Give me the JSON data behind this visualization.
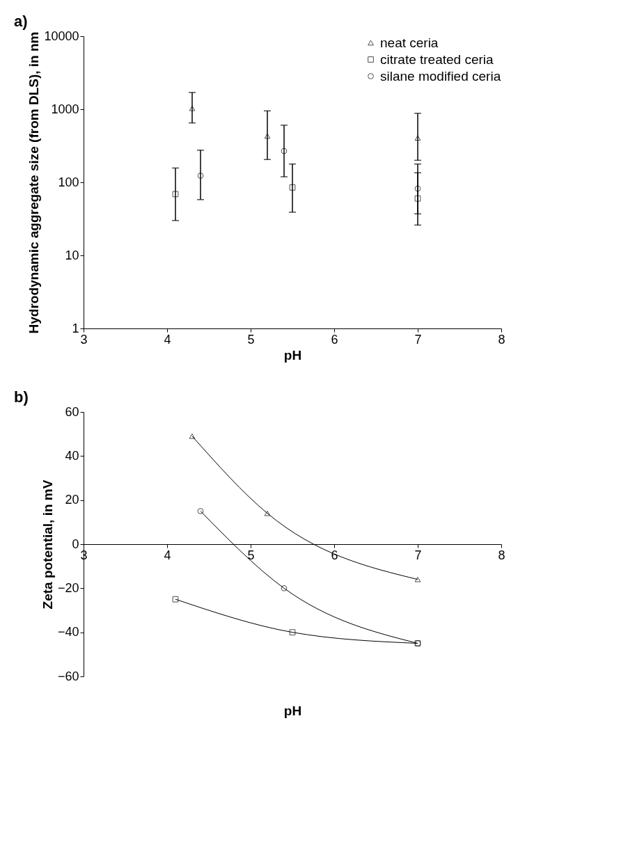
{
  "chart_data": [
    {
      "type": "scatter",
      "title": "a)",
      "xlabel": "pH",
      "ylabel": "Hydrodynamic aggregate size (from DLS), in nm",
      "log": "y",
      "xlim": [
        3,
        8
      ],
      "xticks": [
        3,
        4,
        5,
        6,
        7,
        8
      ],
      "ylim": [
        1,
        10000
      ],
      "yticks": [
        1,
        10,
        100,
        1000,
        10000
      ],
      "grid": false,
      "legend": "top right",
      "series": [
        {
          "name": "neat ceria",
          "color": "#000000",
          "marker": "triangle",
          "x": [
            4.3,
            5.2,
            7.0
          ],
          "values": [
            1030,
            430,
            405
          ],
          "errors": [
            [
              650,
              1700
            ],
            [
              205,
              950
            ],
            [
              200,
              880
            ]
          ]
        },
        {
          "name": "citrate treated ceria",
          "color": "#000000",
          "marker": "square",
          "x": [
            4.1,
            5.5,
            7.0
          ],
          "values": [
            69,
            85,
            60
          ],
          "errors": [
            [
              30,
              157
            ],
            [
              39,
              178
            ],
            [
              26,
              135
            ]
          ]
        },
        {
          "name": "silane modified ceria",
          "color": "#000000",
          "marker": "circle",
          "x": [
            4.4,
            5.4,
            7.0
          ],
          "values": [
            123,
            268,
            82
          ],
          "errors": [
            [
              58,
              275
            ],
            [
              119,
              605
            ],
            [
              37,
              178
            ]
          ]
        }
      ]
    },
    {
      "type": "line",
      "title": "b)",
      "xlabel": "pH",
      "ylabel": "Zeta potential, in mV",
      "xlim": [
        3,
        8
      ],
      "xticks": [
        3,
        4,
        5,
        6,
        7,
        8
      ],
      "ylim": [
        -60,
        60
      ],
      "yticks": [
        -60,
        -40,
        -20,
        0,
        20,
        40,
        60
      ],
      "grid": false,
      "legend": "top right",
      "series": [
        {
          "name": "neat ceria",
          "color": "#000000",
          "marker": "triangle",
          "x": [
            4.3,
            5.2,
            7.0
          ],
          "values": [
            49,
            14,
            -16
          ]
        },
        {
          "name": "citrate treated ceria",
          "color": "#000000",
          "marker": "square",
          "x": [
            4.1,
            5.5,
            7.0
          ],
          "values": [
            -25,
            -40,
            -45
          ]
        },
        {
          "name": "silane modified ceria",
          "color": "#000000",
          "marker": "circle",
          "x": [
            4.4,
            5.4,
            7.0
          ],
          "values": [
            15,
            -20,
            -45
          ]
        }
      ]
    }
  ]
}
